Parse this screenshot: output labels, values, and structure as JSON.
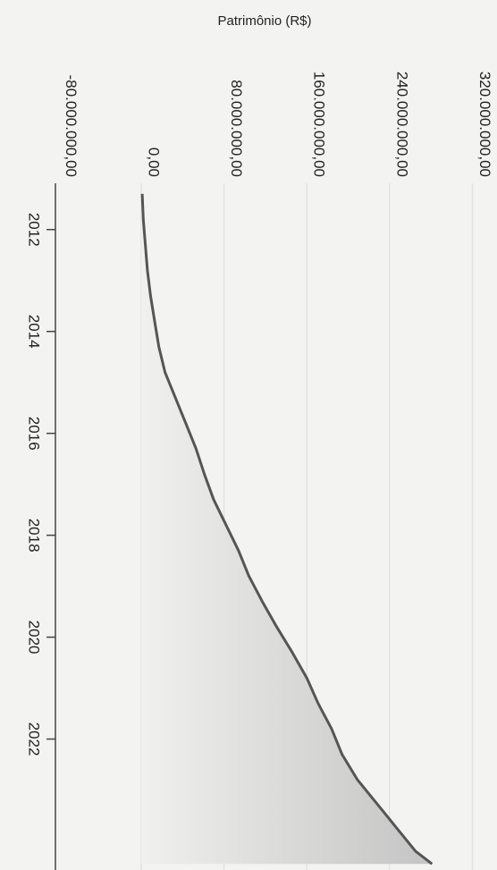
{
  "chart_data": {
    "type": "area",
    "title": "",
    "ylabel": "Patrimônio (R$)",
    "xlabel": "",
    "orientation": "rotated-90-clockwise",
    "x_ticks": [
      "2012",
      "2014",
      "2016",
      "2018",
      "2020",
      "2022"
    ],
    "x_tick_values": [
      2012,
      2014,
      2016,
      2018,
      2020,
      2022
    ],
    "xlim": [
      2011.25,
      2024.5
    ],
    "y_ticks": [
      "-80.000.000,00",
      "0,00",
      "80.000.000,00",
      "160.000.000,00",
      "240.000.000,00",
      "320.000.000,00"
    ],
    "y_tick_values": [
      -80000000,
      0,
      80000000,
      160000000,
      240000000,
      320000000
    ],
    "ylim": [
      -95000000,
      330000000
    ],
    "grid": true,
    "colors": {
      "line": "#555555",
      "fill": "#c9c9c9",
      "grid": "#e2e2e2",
      "axis": "#444444",
      "background": "#f3f3f1"
    },
    "series": [
      {
        "x": [
          2011.3,
          2011.8,
          2012.3,
          2012.8,
          2013.3,
          2013.8,
          2014.3,
          2014.8,
          2015.3,
          2015.8,
          2016.3,
          2016.8,
          2017.3,
          2017.8,
          2018.3,
          2018.8,
          2019.3,
          2019.8,
          2020.3,
          2020.8,
          2021.3,
          2021.8,
          2022.3,
          2022.8,
          2023.3,
          2023.8,
          2024.2,
          2024.45
        ],
        "y": [
          1000000,
          2000000,
          4000000,
          6000000,
          9000000,
          13000000,
          17000000,
          23000000,
          33000000,
          43000000,
          53000000,
          61000000,
          70000000,
          82000000,
          94000000,
          104000000,
          117000000,
          131000000,
          146000000,
          160000000,
          171000000,
          184000000,
          194000000,
          209000000,
          229000000,
          249000000,
          265000000,
          281000000
        ]
      }
    ]
  }
}
